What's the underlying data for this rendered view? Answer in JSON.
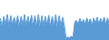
{
  "chart_data": {
    "type": "area",
    "values": [
      55,
      35,
      60,
      38,
      65,
      35,
      62,
      38,
      58,
      40,
      62,
      36,
      60,
      38,
      65,
      35,
      60,
      40,
      63,
      37,
      62,
      36,
      65,
      34,
      62,
      36,
      60,
      38,
      63,
      35,
      60,
      36,
      65,
      33,
      62,
      35,
      58,
      36,
      5,
      8,
      6,
      10,
      7,
      45,
      50,
      40,
      55,
      42,
      52,
      40,
      56,
      42,
      54,
      38,
      56,
      42,
      58,
      40,
      55,
      42,
      58,
      40,
      56,
      38
    ],
    "color": "#5b9bd5",
    "ylim": [
      0,
      100
    ],
    "tick_labels": false
  }
}
